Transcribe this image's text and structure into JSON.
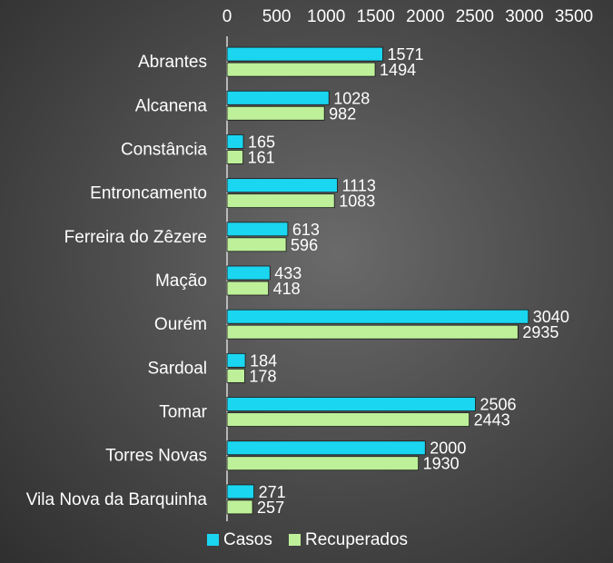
{
  "chart_data": {
    "type": "bar",
    "orientation": "horizontal",
    "categories": [
      "Abrantes",
      "Alcanena",
      "Constância",
      "Entroncamento",
      "Ferreira do Zêzere",
      "Mação",
      "Ourém",
      "Sardoal",
      "Tomar",
      "Torres Novas",
      "Vila Nova da Barquinha"
    ],
    "series": [
      {
        "name": "Casos",
        "color": "#1ad6f0",
        "values": [
          1571,
          1028,
          165,
          1113,
          613,
          433,
          3040,
          184,
          2506,
          2000,
          271
        ]
      },
      {
        "name": "Recuperados",
        "color": "#bef09a",
        "values": [
          1494,
          982,
          161,
          1083,
          596,
          418,
          2935,
          178,
          2443,
          1930,
          257
        ]
      }
    ],
    "xlim": [
      0,
      3500
    ],
    "xticks": [
      0,
      500,
      1000,
      1500,
      2000,
      2500,
      3000,
      3500
    ],
    "axis_position": "top",
    "legend_position": "bottom",
    "grid": false,
    "data_labels": true
  }
}
